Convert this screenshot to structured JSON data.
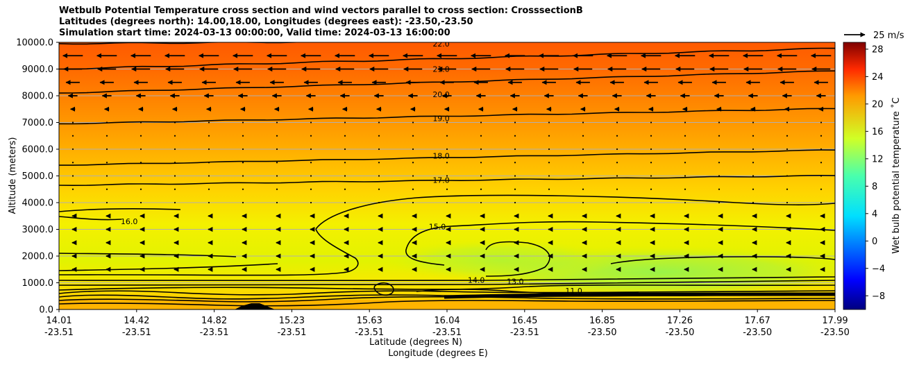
{
  "chart_data": {
    "type": "contourf",
    "title_lines": [
      "Wetbulb Potential Temperature cross section and wind vectors parallel to cross section: CrosssectionB",
      "Latitudes (degrees north): 14.00,18.00, Longitudes (degrees east): -23.50,-23.50",
      "Simulation start time: 2024-03-13 00:00:00, Valid time: 2024-03-13 16:00:00"
    ],
    "xlabel_lines": [
      "Latitude (degrees N)",
      "Longitude (degrees E)"
    ],
    "ylabel": "Altitude (meters)",
    "x_ticks": [
      {
        "lat": "14.01",
        "lon": "-23.51"
      },
      {
        "lat": "14.42",
        "lon": "-23.51"
      },
      {
        "lat": "14.82",
        "lon": "-23.51"
      },
      {
        "lat": "15.23",
        "lon": "-23.51"
      },
      {
        "lat": "15.63",
        "lon": "-23.51"
      },
      {
        "lat": "16.04",
        "lon": "-23.51"
      },
      {
        "lat": "16.45",
        "lon": "-23.51"
      },
      {
        "lat": "16.85",
        "lon": "-23.50"
      },
      {
        "lat": "17.26",
        "lon": "-23.50"
      },
      {
        "lat": "17.67",
        "lon": "-23.50"
      },
      {
        "lat": "17.99",
        "lon": "-23.50"
      }
    ],
    "x_range": [
      14.01,
      17.99
    ],
    "y_ticks": [
      0,
      1000,
      2000,
      3000,
      4000,
      5000,
      6000,
      7000,
      8000,
      9000,
      10000
    ],
    "y_tick_labels": [
      "0.0",
      "1000.0",
      "2000.0",
      "3000.0",
      "4000.0",
      "5000.0",
      "6000.0",
      "7000.0",
      "8000.0",
      "9000.0",
      "10000.0"
    ],
    "ylim": [
      0,
      10000
    ],
    "grid": "horizontal",
    "colorbar": {
      "label": "Wet bulb potential temperature ˚C",
      "range": [
        -10,
        29
      ],
      "ticks": [
        -8,
        -4,
        0,
        4,
        8,
        12,
        16,
        20,
        24,
        28
      ],
      "tick_labels": [
        "−8",
        "−4",
        "0",
        "4",
        "8",
        "12",
        "16",
        "20",
        "24",
        "28"
      ],
      "colormap": "jet"
    },
    "quiver_key": {
      "label": "25 m/s",
      "speed": 25
    },
    "contour_levels": [
      {
        "value": 22.0,
        "label": "22.0",
        "y": 9950,
        "label_lat": 15.97
      },
      {
        "value": 21.0,
        "label": "21.0",
        "y": 9000,
        "label_lat": 15.97
      },
      {
        "value": 20.0,
        "label": "20.0",
        "y": 8050,
        "label_lat": 15.97
      },
      {
        "value": 19.0,
        "label": "19.0",
        "y": 7150,
        "label_lat": 15.97
      },
      {
        "value": 18.0,
        "label": "18.0",
        "y": 5750,
        "label_lat": 15.97
      },
      {
        "value": 17.0,
        "label": "17.0",
        "y": 4850,
        "label_lat": 15.97
      },
      {
        "value": 16.0,
        "label": "16.0",
        "y": 3300,
        "label_lat": 14.37
      },
      {
        "value": 15.0,
        "label": "15.0",
        "y": 3100,
        "label_lat": 15.95
      },
      {
        "value": 14.0,
        "label": "14.0",
        "y": 1100,
        "label_lat": 16.15
      },
      {
        "value": 13.0,
        "label": "13.0",
        "y": 1050,
        "label_lat": 16.35
      },
      {
        "value": 11.0,
        "label": "11.0",
        "y": 700,
        "label_lat": 16.65
      }
    ],
    "wind_u_by_height": [
      {
        "alt": 9500,
        "u": -13
      },
      {
        "alt": 9000,
        "u": -12
      },
      {
        "alt": 8500,
        "u": -9
      },
      {
        "alt": 8000,
        "u": -6
      },
      {
        "alt": 7500,
        "u": -3
      },
      {
        "alt": 7000,
        "u": 0
      },
      {
        "alt": 6500,
        "u": 0
      },
      {
        "alt": 6000,
        "u": 0
      },
      {
        "alt": 5500,
        "u": 0
      },
      {
        "alt": 5000,
        "u": 0
      },
      {
        "alt": 4500,
        "u": 0
      },
      {
        "alt": 4000,
        "u": 0
      },
      {
        "alt": 3500,
        "u": -1
      },
      {
        "alt": 3000,
        "u": -1
      },
      {
        "alt": 2500,
        "u": -1
      },
      {
        "alt": 2000,
        "u": -1
      },
      {
        "alt": 1500,
        "u": -1
      }
    ]
  }
}
